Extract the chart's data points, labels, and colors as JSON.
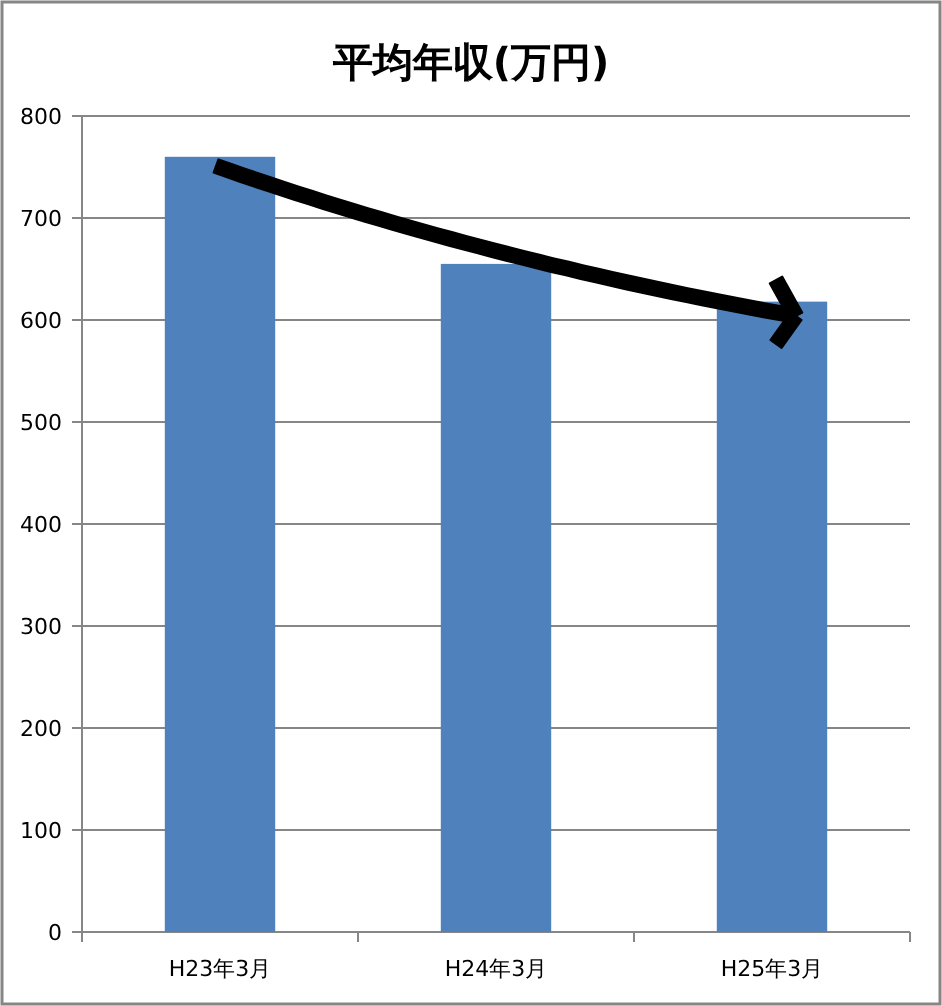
{
  "chart_data": {
    "type": "bar",
    "title": "平均年収(万円)",
    "categories": [
      "H23年3月",
      "H24年3月",
      "H25年3月"
    ],
    "values": [
      760,
      655,
      618
    ],
    "color": "#4f81bd",
    "ylim": [
      0,
      800
    ],
    "yticks": [
      0,
      100,
      200,
      300,
      400,
      500,
      600,
      700,
      800
    ],
    "grid": "y"
  }
}
